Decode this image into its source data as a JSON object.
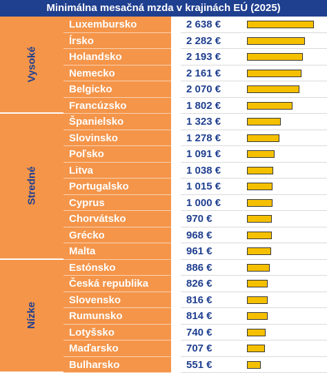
{
  "title": "Minimálna mesačná mzda v krajinách EÚ (2025)",
  "chart_data": {
    "type": "bar",
    "orientation": "horizontal",
    "title": "Minimálna mesačná mzda v krajinách EÚ (2025)",
    "unit": "€",
    "colors": {
      "bar": "#f5c000",
      "header": "#1f3f8f",
      "label_panel": "#f4954a",
      "value_text": "#1f3f8f"
    },
    "groups": [
      {
        "label": "Vysoké",
        "rows": [
          {
            "country": "Luxembursko",
            "value": 2638,
            "display": "2 638 €"
          },
          {
            "country": "Írsko",
            "value": 2282,
            "display": "2 282 €"
          },
          {
            "country": "Holandsko",
            "value": 2193,
            "display": "2 193 €"
          },
          {
            "country": "Nemecko",
            "value": 2161,
            "display": "2 161 €"
          },
          {
            "country": "Belgicko",
            "value": 2070,
            "display": "2 070 €"
          },
          {
            "country": "Francúzsko",
            "value": 1802,
            "display": "1 802 €"
          }
        ]
      },
      {
        "label": "Stredné",
        "rows": [
          {
            "country": "Španielsko",
            "value": 1323,
            "display": "1 323 €"
          },
          {
            "country": "Slovinsko",
            "value": 1278,
            "display": "1 278 €"
          },
          {
            "country": "Poľsko",
            "value": 1091,
            "display": "1 091 €"
          },
          {
            "country": "Litva",
            "value": 1038,
            "display": "1 038 €"
          },
          {
            "country": "Portugalsko",
            "value": 1015,
            "display": "1 015 €"
          },
          {
            "country": "Cyprus",
            "value": 1000,
            "display": "1 000 €"
          },
          {
            "country": "Chorvátsko",
            "value": 970,
            "display": "970 €"
          },
          {
            "country": "Grécko",
            "value": 968,
            "display": "968 €"
          },
          {
            "country": "Malta",
            "value": 961,
            "display": "961 €"
          }
        ]
      },
      {
        "label": "Nízke",
        "rows": [
          {
            "country": "Estónsko",
            "value": 886,
            "display": "886 €"
          },
          {
            "country": "Česká republika",
            "value": 826,
            "display": "826 €"
          },
          {
            "country": "Slovensko",
            "value": 816,
            "display": "816 €"
          },
          {
            "country": "Rumunsko",
            "value": 814,
            "display": "814 €"
          },
          {
            "country": "Lotyšsko",
            "value": 740,
            "display": "740 €"
          },
          {
            "country": "Maďarsko",
            "value": 707,
            "display": "707 €"
          },
          {
            "country": "Bulharsko",
            "value": 551,
            "display": "551 €"
          }
        ]
      }
    ]
  }
}
